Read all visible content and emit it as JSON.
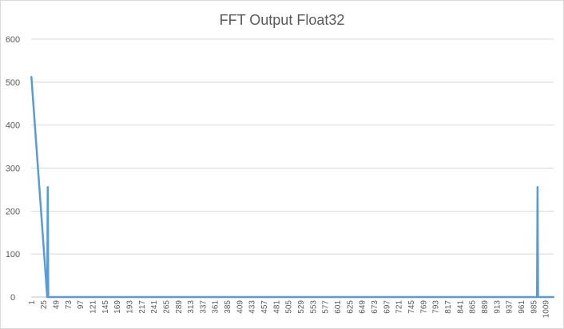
{
  "chart_data": {
    "type": "line",
    "title": "FFT Output Float32",
    "xlabel": "",
    "ylabel": "",
    "ylim": [
      0,
      600
    ],
    "yticks": [
      0,
      100,
      200,
      300,
      400,
      500,
      600
    ],
    "x_range": [
      1,
      1024
    ],
    "xtick_labels": [
      "1",
      "25",
      "49",
      "73",
      "97",
      "121",
      "145",
      "169",
      "193",
      "217",
      "241",
      "265",
      "289",
      "313",
      "337",
      "361",
      "385",
      "409",
      "433",
      "457",
      "481",
      "505",
      "529",
      "553",
      "577",
      "601",
      "625",
      "649",
      "673",
      "697",
      "721",
      "745",
      "769",
      "793",
      "817",
      "841",
      "865",
      "889",
      "913",
      "937",
      "961",
      "985",
      "1009"
    ],
    "grid": true,
    "legend": "none",
    "color": "#5b9bd5",
    "baseline": 0,
    "series": [
      {
        "points": [
          {
            "x": 1,
            "y": 512
          },
          {
            "x": 33,
            "y": 256
          },
          {
            "x": 993,
            "y": 256
          }
        ]
      }
    ]
  }
}
